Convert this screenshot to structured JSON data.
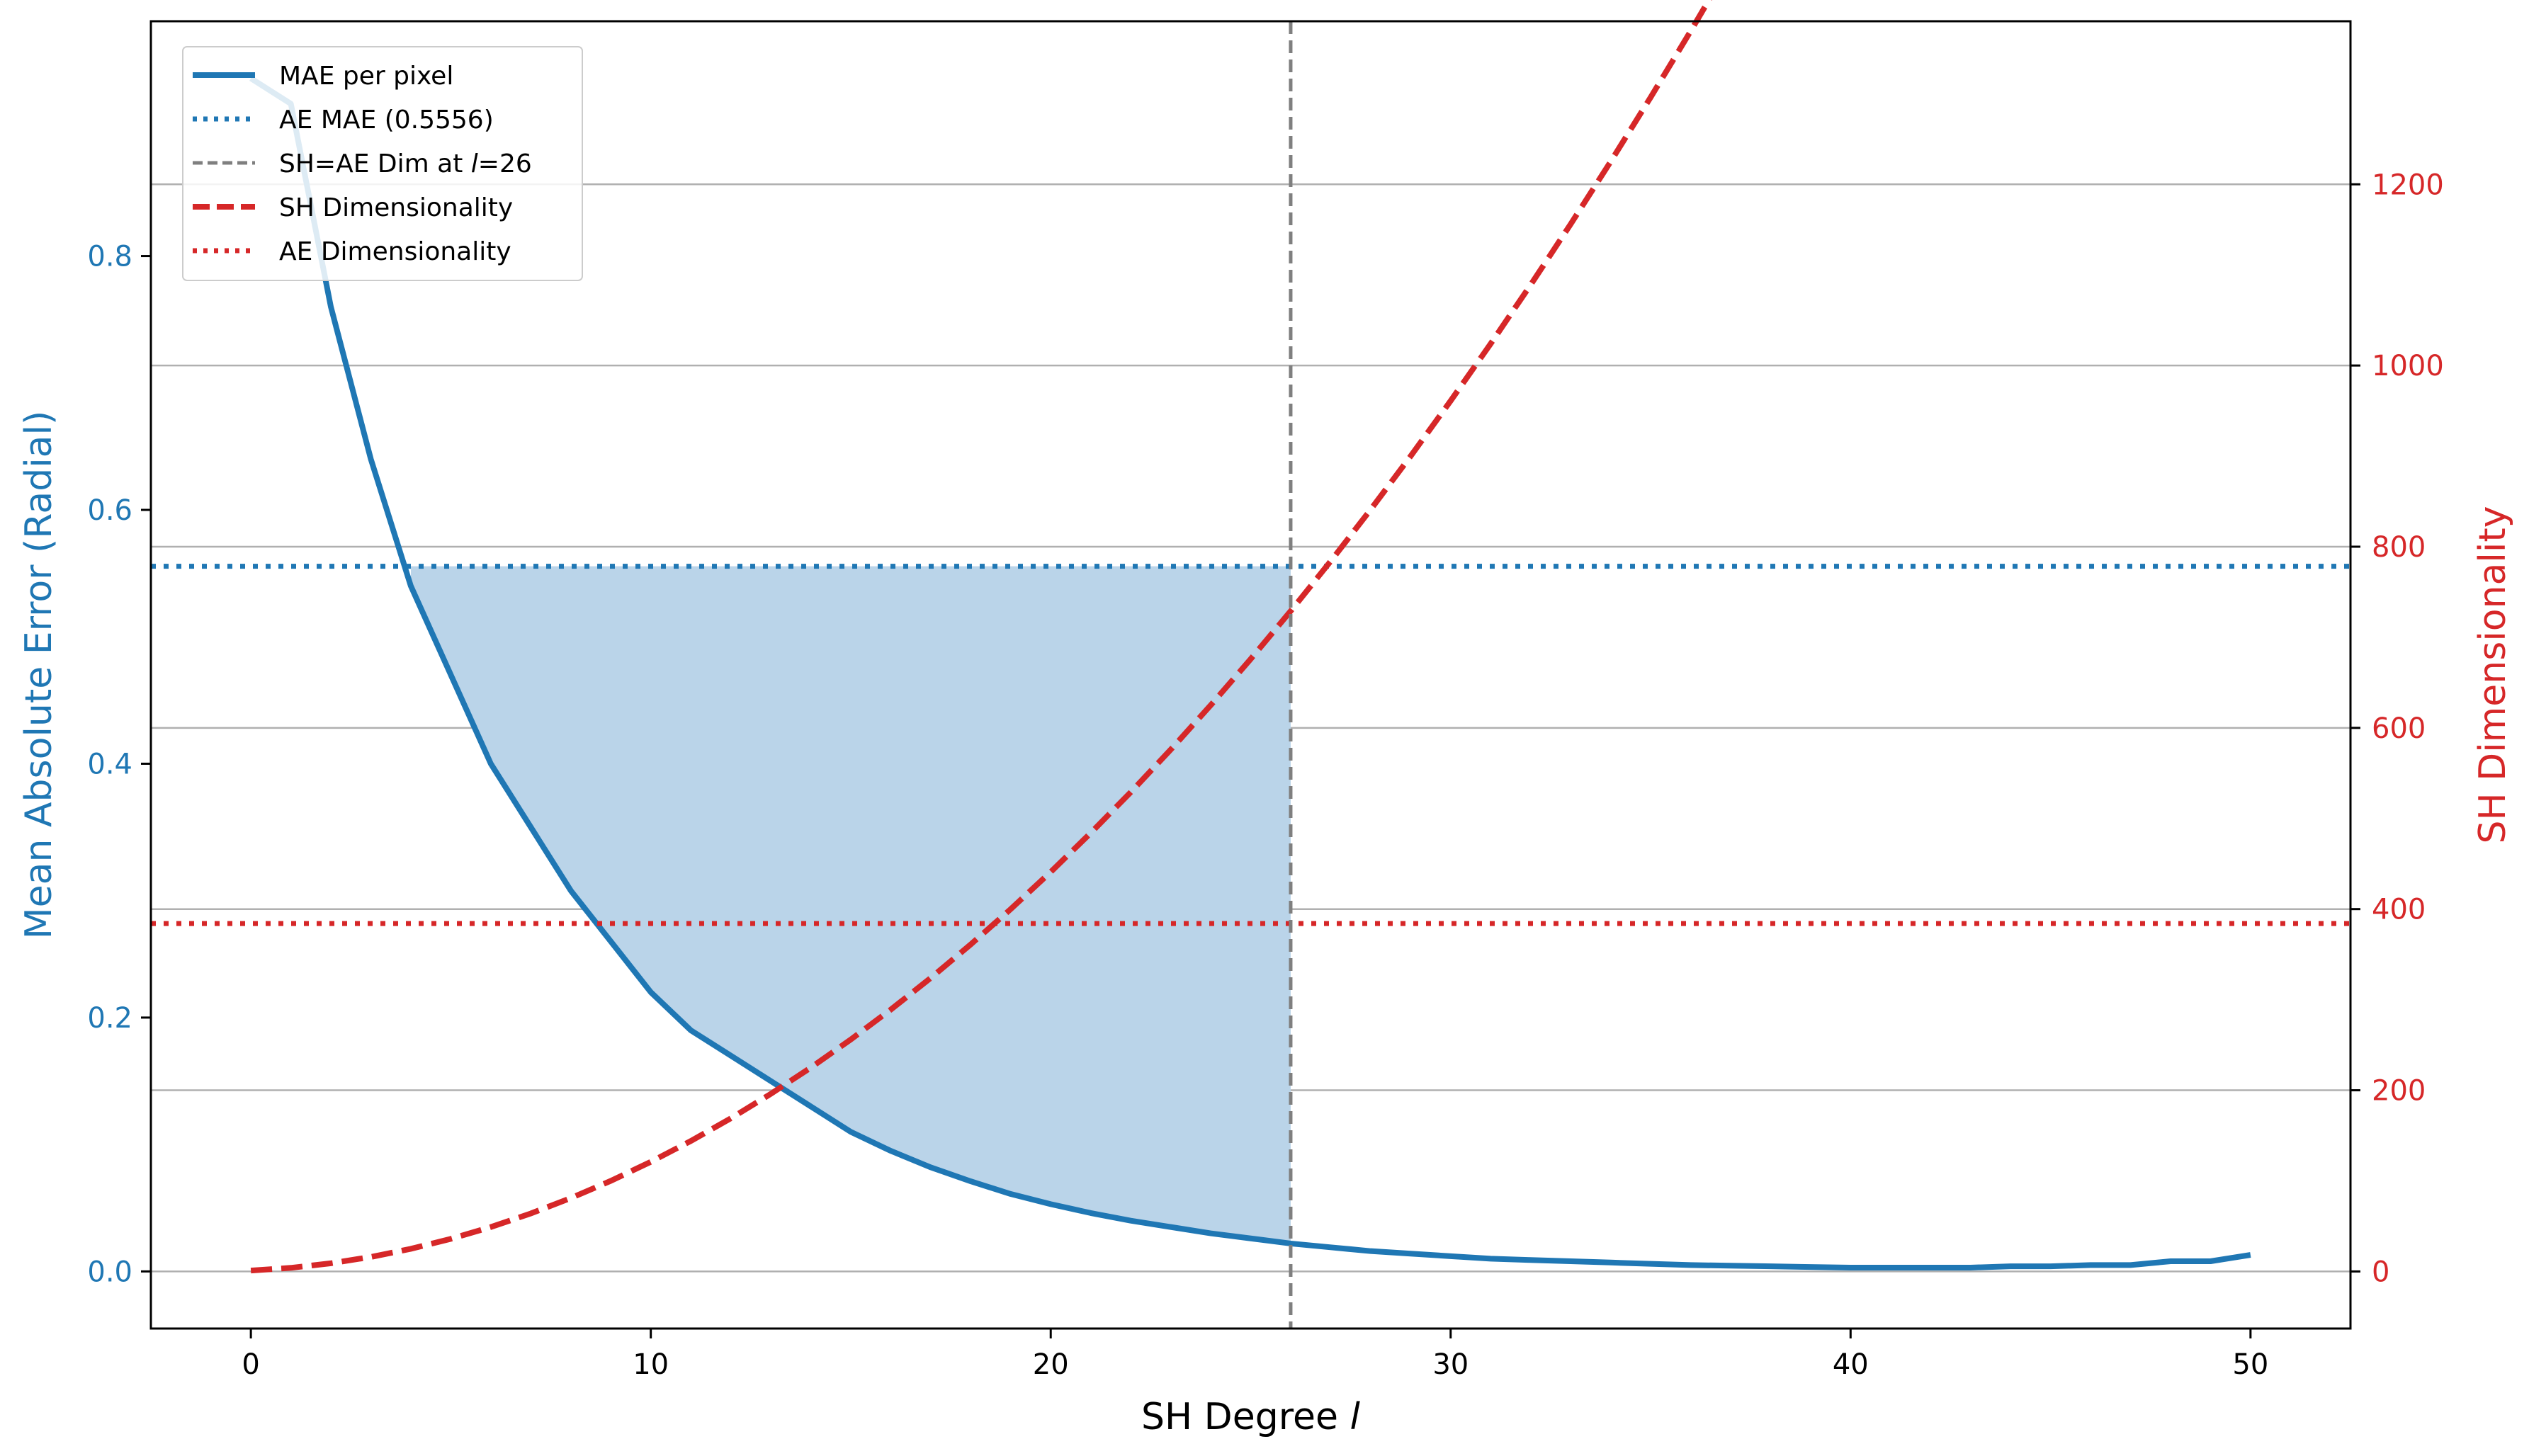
{
  "chart_data": {
    "type": "line",
    "xlabel": "SH Degree",
    "xlabel_italic": "l",
    "ylabel_left": "Mean Absolute Error (Radial)",
    "ylabel_right": "SH Dimensionality",
    "xlim": [
      -2.5,
      52.5
    ],
    "ylim_left": [
      -0.045,
      0.985
    ],
    "ylim_right": [
      -63,
      1380
    ],
    "x_ticks": [
      0,
      10,
      20,
      30,
      40,
      50
    ],
    "y_left_ticks": [
      "0.0",
      "0.2",
      "0.4",
      "0.6",
      "0.8"
    ],
    "y_right_ticks": [
      "0",
      "200",
      "400",
      "600",
      "800",
      "1000",
      "1200"
    ],
    "grid": "horizontal (right axis ticks)",
    "legend_position": "top-left",
    "colors": {
      "blue": "#1f77b4",
      "red": "#d62728",
      "gray": "#7f7f7f",
      "fill": "#bad4e9",
      "grid": "#b0b0b0"
    },
    "series": [
      {
        "name": "MAE per pixel",
        "axis": "left",
        "style": "solid",
        "x": [
          0,
          1,
          2,
          3,
          4,
          5,
          6,
          7,
          8,
          9,
          10,
          11,
          12,
          13,
          14,
          15,
          16,
          17,
          18,
          19,
          20,
          21,
          22,
          23,
          24,
          25,
          26,
          27,
          28,
          29,
          30,
          31,
          32,
          33,
          34,
          35,
          36,
          37,
          38,
          39,
          40,
          41,
          42,
          43,
          44,
          45,
          46,
          47,
          48,
          49,
          50
        ],
        "values": [
          0.94,
          0.92,
          0.76,
          0.64,
          0.54,
          0.47,
          0.4,
          0.35,
          0.3,
          0.26,
          0.22,
          0.19,
          0.17,
          0.15,
          0.13,
          0.11,
          0.095,
          0.082,
          0.071,
          0.061,
          0.053,
          0.046,
          0.04,
          0.035,
          0.03,
          0.026,
          0.022,
          0.019,
          0.016,
          0.014,
          0.012,
          0.01,
          0.009,
          0.008,
          0.007,
          0.006,
          0.005,
          0.0045,
          0.004,
          0.0035,
          0.003,
          0.003,
          0.003,
          0.003,
          0.004,
          0.004,
          0.005,
          0.005,
          0.008,
          0.008,
          0.013
        ]
      },
      {
        "name": "AE MAE (0.5556)",
        "axis": "left",
        "style": "dotted",
        "value": 0.5556
      },
      {
        "name": "SH=AE Dim at ",
        "name_italic": "l",
        "name_suffix": "=26",
        "axis": "x",
        "style": "dashed",
        "value": 26
      },
      {
        "name": "SH Dimensionality",
        "axis": "right",
        "style": "dashed",
        "formula": "(l+1)^2",
        "x_range": [
          0,
          50
        ]
      },
      {
        "name": "AE Dimensionality",
        "axis": "right",
        "style": "dotted",
        "value": 384
      }
    ],
    "shaded_region": {
      "x_range": [
        4,
        26
      ],
      "between": "MAE per pixel and AE MAE"
    }
  }
}
